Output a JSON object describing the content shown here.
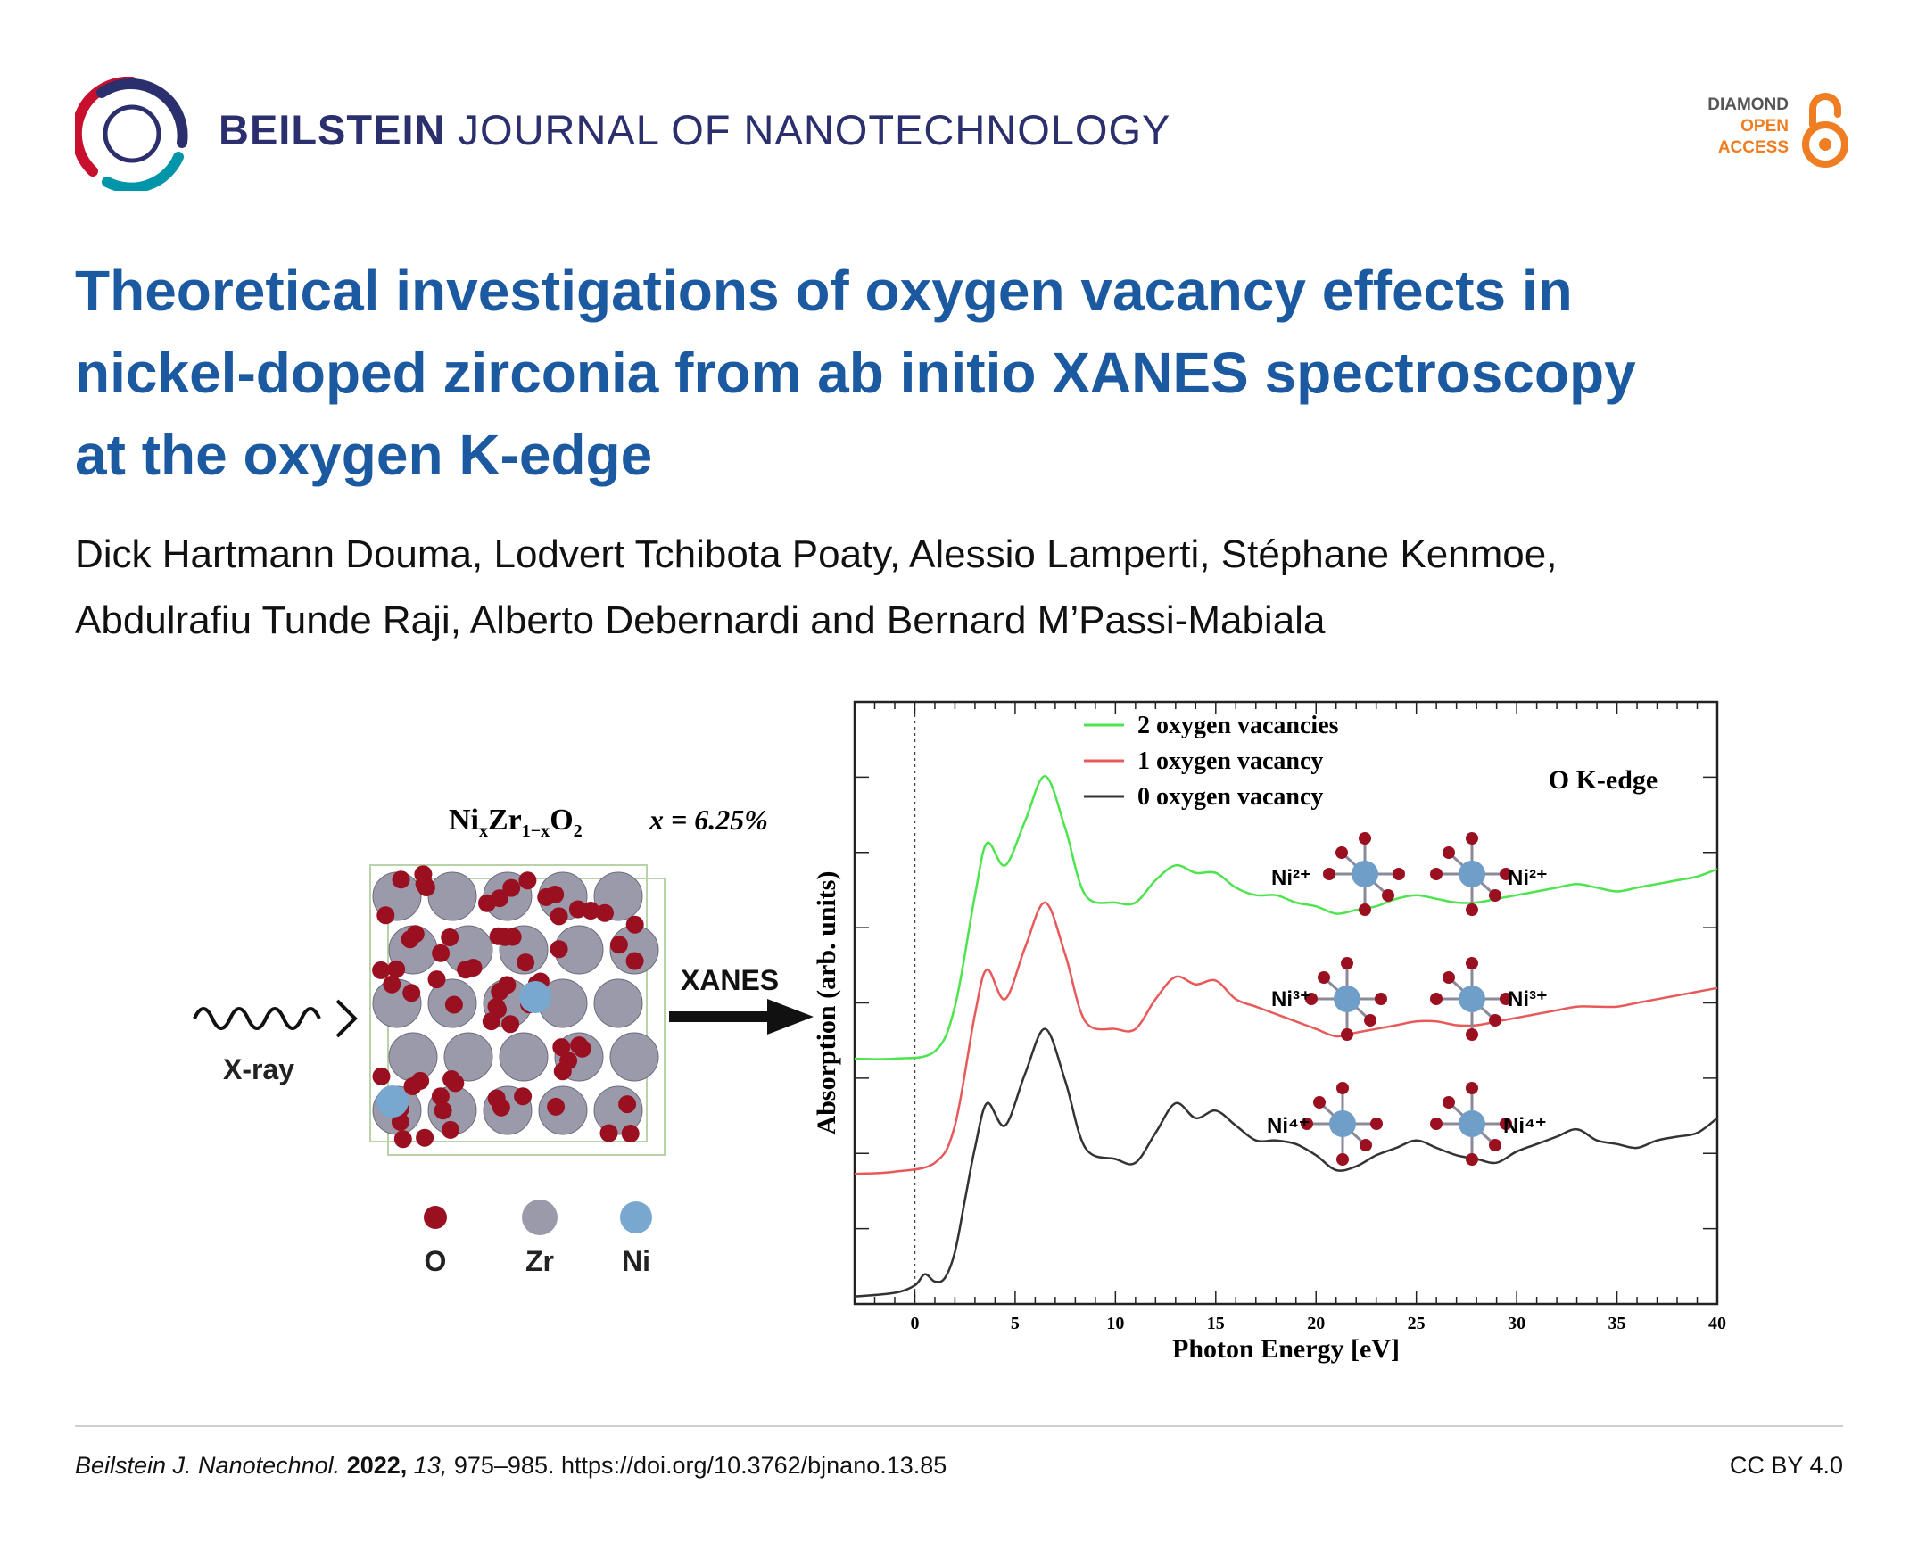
{
  "header": {
    "journal_bold": "BEILSTEIN",
    "journal_rest": "JOURNAL OF NANOTECHNOLOGY",
    "oa_line1": "DIAMOND",
    "oa_line2": "OPEN",
    "oa_line3": "ACCESS",
    "logo_colors": [
      "#c8102e",
      "#2b2f6e",
      "#0095a8"
    ],
    "oa_color": "#ef7d22"
  },
  "article": {
    "title_line1": "Theoretical investigations of oxygen vacancy effects in",
    "title_line2": "nickel-doped zirconia from ab initio XANES spectroscopy",
    "title_line3": "at the oxygen K-edge",
    "authors_line1": "Dick Hartmann Douma, Lodvert Tchibota Poaty, Alessio Lamperti, Stéphane Kenmoe,",
    "authors_line2": "Abdulrafiu Tunde Raji, Alberto Debernardi and Bernard M’Passi-Mabiala"
  },
  "figure": {
    "formula": "Ni",
    "formula_sub1": "x",
    "formula_mid": "Zr",
    "formula_sub2": "1−x",
    "formula_o": "O",
    "formula_sub3": "2",
    "concentration": "x = 6.25%",
    "xray_label": "X-ray",
    "xanes_label": "XANES",
    "legend_atoms": [
      {
        "label": "O",
        "color": "#9b1020"
      },
      {
        "label": "Zr",
        "color": "#9a9aaa"
      },
      {
        "label": "Ni",
        "color": "#78a8d0"
      }
    ],
    "ni_labels": [
      "Ni²⁺",
      "Ni²⁺",
      "Ni³⁺",
      "Ni³⁺",
      "Ni⁴⁺",
      "Ni⁴⁺"
    ]
  },
  "chart_data": {
    "type": "line",
    "title": "",
    "annotation": "O K-edge",
    "xlabel": "Photon Energy [eV]",
    "ylabel": "Absorption (arb. units)",
    "xlim": [
      -3,
      40
    ],
    "xticks": [
      0,
      5,
      10,
      15,
      20,
      25,
      30,
      35,
      40
    ],
    "series": [
      {
        "name": "2 oxygen vacancies",
        "color": "#4ee44e",
        "x": [
          -3,
          -1,
          1,
          2,
          3,
          3.6,
          4.5,
          5.5,
          6.5,
          7.5,
          8.5,
          10,
          11,
          12,
          13,
          14,
          15,
          16,
          17,
          18,
          19,
          20,
          21,
          22,
          23,
          24,
          25,
          26,
          27,
          28,
          29,
          30,
          31,
          32,
          33,
          34,
          35,
          36,
          37,
          38,
          39,
          40
        ],
        "y": [
          2.1,
          2.1,
          2.2,
          2.8,
          4.3,
          5.0,
          4.7,
          5.3,
          5.9,
          5.2,
          4.3,
          4.2,
          4.2,
          4.5,
          4.7,
          4.6,
          4.6,
          4.4,
          4.3,
          4.3,
          4.2,
          4.15,
          4.05,
          4.1,
          4.15,
          4.25,
          4.3,
          4.25,
          4.2,
          4.2,
          4.25,
          4.3,
          4.35,
          4.4,
          4.45,
          4.4,
          4.35,
          4.4,
          4.45,
          4.5,
          4.55,
          4.65
        ]
      },
      {
        "name": "1 oxygen vacancy",
        "color": "#e85a5a",
        "x": [
          -3,
          -1,
          1,
          2,
          3,
          3.6,
          4.5,
          5.5,
          6.5,
          7.5,
          8.5,
          10,
          11,
          12,
          13,
          14,
          15,
          16,
          17,
          18,
          19,
          20,
          21,
          22,
          23,
          24,
          25,
          26,
          27,
          28,
          29,
          30,
          31,
          32,
          33,
          34,
          35,
          36,
          37,
          38,
          39,
          40
        ],
        "y": [
          0.55,
          0.58,
          0.7,
          1.2,
          2.7,
          3.3,
          2.9,
          3.6,
          4.2,
          3.5,
          2.6,
          2.5,
          2.5,
          2.9,
          3.2,
          3.1,
          3.15,
          2.9,
          2.8,
          2.7,
          2.6,
          2.5,
          2.4,
          2.45,
          2.5,
          2.55,
          2.6,
          2.6,
          2.55,
          2.55,
          2.6,
          2.65,
          2.7,
          2.75,
          2.8,
          2.8,
          2.8,
          2.85,
          2.9,
          2.95,
          3.0,
          3.05
        ]
      },
      {
        "name": "0 oxygen vacancy",
        "color": "#333333",
        "x": [
          -3,
          -1,
          0,
          0.5,
          1,
          1.5,
          2,
          2.5,
          3,
          3.6,
          4.5,
          5.5,
          6.5,
          7.5,
          8.5,
          10,
          11,
          12,
          13,
          14,
          15,
          16,
          17,
          18,
          19,
          20,
          21,
          22,
          23,
          24,
          25,
          26,
          27,
          28,
          29,
          30,
          31,
          32,
          33,
          34,
          35,
          36,
          37,
          38,
          39,
          40
        ],
        "y": [
          -1.1,
          -1.05,
          -0.95,
          -0.8,
          -0.9,
          -0.85,
          -0.5,
          0.2,
          0.9,
          1.5,
          1.2,
          1.9,
          2.5,
          1.8,
          0.9,
          0.75,
          0.7,
          1.1,
          1.5,
          1.3,
          1.4,
          1.2,
          1.0,
          1.0,
          0.95,
          0.8,
          0.6,
          0.65,
          0.8,
          0.9,
          1.0,
          0.9,
          0.8,
          0.75,
          0.7,
          0.85,
          0.95,
          1.05,
          1.15,
          1.0,
          0.95,
          0.9,
          1.0,
          1.05,
          1.1,
          1.3
        ]
      }
    ],
    "grid": false,
    "legend": "top-center"
  },
  "footer": {
    "journal_abbr": "Beilstein J. Nanotechnol.",
    "year": "2022,",
    "volume": "13,",
    "pages_doi": "975–985. https://doi.org/10.3762/bjnano.13.85",
    "license": "CC BY 4.0"
  }
}
